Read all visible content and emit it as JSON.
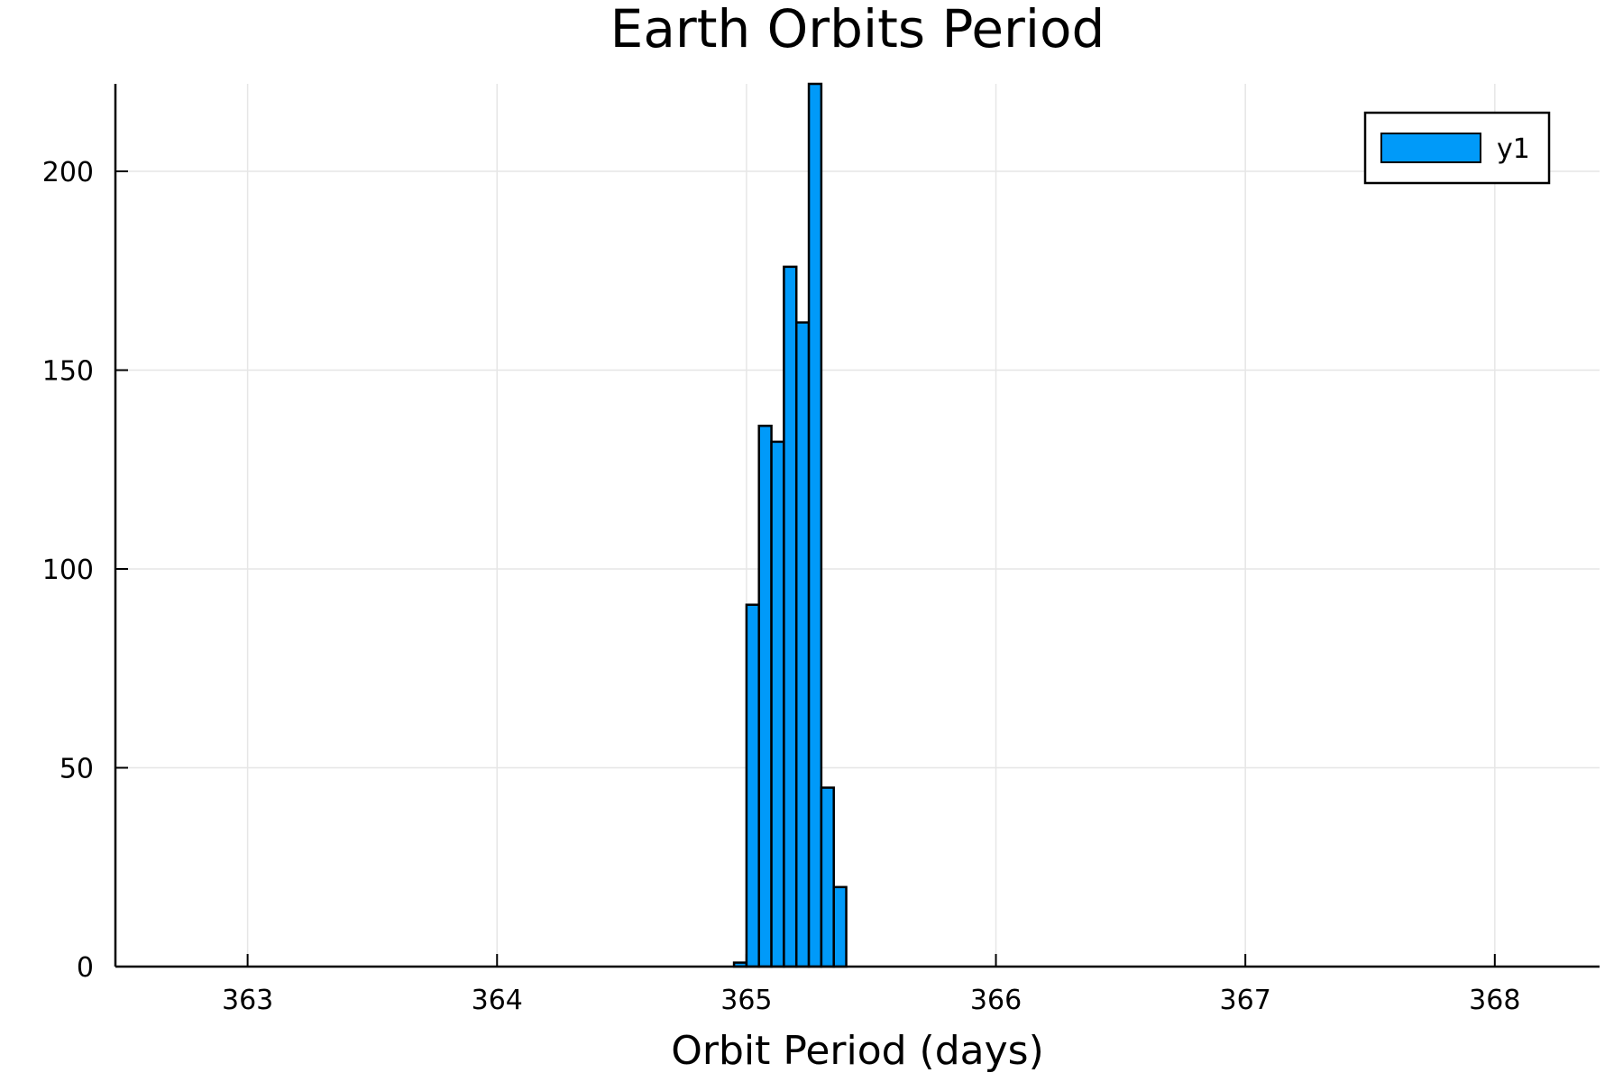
{
  "chart_data": {
    "type": "bar",
    "title": "Earth Orbits Period",
    "xlabel": "Orbit Period (days)",
    "ylabel": "",
    "bin_width": 0.05,
    "bins": [
      {
        "x0": 364.95,
        "x1": 365.0,
        "count": 1
      },
      {
        "x0": 365.0,
        "x1": 365.05,
        "count": 91
      },
      {
        "x0": 365.05,
        "x1": 365.1,
        "count": 136
      },
      {
        "x0": 365.1,
        "x1": 365.15,
        "count": 132
      },
      {
        "x0": 365.15,
        "x1": 365.2,
        "count": 176
      },
      {
        "x0": 365.2,
        "x1": 365.25,
        "count": 162
      },
      {
        "x0": 365.25,
        "x1": 365.3,
        "count": 222
      },
      {
        "x0": 365.3,
        "x1": 365.35,
        "count": 45
      },
      {
        "x0": 365.35,
        "x1": 365.4,
        "count": 20
      }
    ],
    "series": [
      {
        "name": "y1",
        "color": "#009AF9"
      }
    ],
    "xlim": [
      362.47,
      368.42
    ],
    "ylim": [
      0,
      222
    ],
    "xticks": [
      363,
      364,
      365,
      366,
      367,
      368
    ],
    "yticks": [
      0,
      50,
      100,
      150,
      200
    ],
    "grid": true,
    "legend_position": "top-right"
  }
}
